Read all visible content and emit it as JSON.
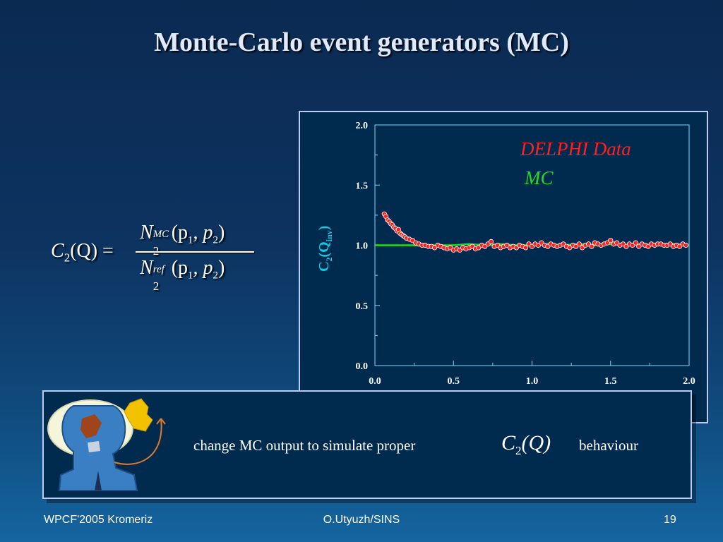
{
  "slide": {
    "title": "Monte-Carlo event generators (MC)",
    "caption_text": "change MC output to simulate proper",
    "caption_after": "behaviour",
    "caption_formula": {
      "symbol": "C",
      "sub": "2",
      "arg": "(Q)"
    }
  },
  "formula": {
    "lhs_symbol": "C",
    "lhs_sub": "2",
    "lhs_arg": "(Q) =",
    "num_symbol": "N",
    "num_sub": "2",
    "num_sup": "MC",
    "num_args": "(p",
    "num_p1_sub": "1",
    "num_mid": ", p",
    "num_p2_sub": "2",
    "num_close": ")",
    "den_symbol": "N",
    "den_sub": "2",
    "den_sup": "ref",
    "den_args": "(p",
    "den_p1_sub": "1",
    "den_mid": ", p",
    "den_p2_sub": "2",
    "den_close": ")"
  },
  "footer": {
    "left": "WPCF'2005 Kromeriz",
    "center": "O.Utyuzh/SINS",
    "right": "19"
  },
  "colors": {
    "data": "#ff2020",
    "mc": "#22dd22",
    "axis": "#7fd8ff",
    "tick_labels": "#ffffff"
  },
  "chart_data": {
    "type": "scatter",
    "xlim": [
      0.0,
      2.0
    ],
    "ylim": [
      0.0,
      2.0
    ],
    "x_ticks": [
      "0.0",
      "0.5",
      "1.0",
      "1.5",
      "2.0"
    ],
    "y_ticks": [
      "0.0",
      "0.5",
      "1.0",
      "1.5",
      "2.0"
    ],
    "ylabel": "C",
    "ylabel_sub": "2",
    "ylabel_paren": "(Q",
    "ylabel_inv": "inv",
    "ylabel_close": ")",
    "legend": [
      {
        "name": "DELPHI Data",
        "color": "#ff2020"
      },
      {
        "name": "MC",
        "color": "#22dd22"
      }
    ],
    "series": [
      {
        "name": "DELPHI Data",
        "x": [
          0.06,
          0.07,
          0.08,
          0.09,
          0.1,
          0.11,
          0.12,
          0.13,
          0.14,
          0.15,
          0.16,
          0.17,
          0.18,
          0.19,
          0.2,
          0.22,
          0.24,
          0.26,
          0.28,
          0.3,
          0.32,
          0.34,
          0.36,
          0.38,
          0.4,
          0.42,
          0.44,
          0.46,
          0.48,
          0.5,
          0.52,
          0.54,
          0.56,
          0.58,
          0.6,
          0.62,
          0.64,
          0.66,
          0.68,
          0.7,
          0.72,
          0.74,
          0.76,
          0.78,
          0.8,
          0.82,
          0.84,
          0.86,
          0.88,
          0.9,
          0.92,
          0.94,
          0.96,
          0.98,
          1.0,
          1.02,
          1.04,
          1.06,
          1.08,
          1.1,
          1.12,
          1.14,
          1.16,
          1.18,
          1.2,
          1.22,
          1.24,
          1.26,
          1.28,
          1.3,
          1.32,
          1.34,
          1.36,
          1.38,
          1.4,
          1.42,
          1.44,
          1.46,
          1.48,
          1.5,
          1.52,
          1.54,
          1.56,
          1.58,
          1.6,
          1.62,
          1.64,
          1.66,
          1.68,
          1.7,
          1.72,
          1.74,
          1.76,
          1.78,
          1.8,
          1.82,
          1.84,
          1.86,
          1.88,
          1.9,
          1.92,
          1.94,
          1.96,
          1.98
        ],
        "y": [
          1.26,
          1.24,
          1.21,
          1.2,
          1.18,
          1.17,
          1.15,
          1.14,
          1.12,
          1.13,
          1.1,
          1.09,
          1.08,
          1.07,
          1.06,
          1.05,
          1.04,
          1.02,
          1.01,
          1.0,
          1.0,
          0.99,
          0.99,
          0.98,
          1.0,
          0.99,
          0.98,
          0.97,
          0.98,
          0.96,
          0.97,
          0.96,
          0.98,
          0.97,
          0.98,
          0.99,
          0.97,
          0.98,
          1.0,
          0.99,
          1.01,
          1.03,
          0.99,
          1.0,
          0.98,
          0.99,
          1.0,
          0.98,
          0.99,
          0.98,
          1.0,
          0.99,
          0.98,
          1.01,
          0.99,
          1.01,
          1.0,
          1.02,
          1.0,
          0.99,
          1.01,
          1.0,
          0.99,
          1.0,
          1.01,
          0.99,
          0.98,
          1.0,
          0.99,
          1.01,
          0.98,
          1.0,
          1.01,
          0.99,
          1.02,
          1.01,
          1.0,
          1.01,
          1.02,
          1.04,
          1.01,
          1.02,
          1.0,
          1.01,
          0.99,
          1.01,
          1.0,
          1.02,
          0.99,
          1.01,
          1.0,
          0.99,
          1.01,
          1.0,
          1.01,
          1.01,
          1.0,
          1.0,
          1.01,
          0.99,
          1.0,
          0.99,
          1.01,
          1.0
        ]
      },
      {
        "name": "MC",
        "x": [
          0.0,
          0.1,
          0.2,
          0.3,
          0.4,
          0.5,
          0.6,
          0.7,
          0.8,
          0.9,
          1.0,
          1.1,
          1.2,
          1.3,
          1.4,
          1.5,
          1.6,
          1.7,
          1.8,
          1.9,
          2.0
        ],
        "y": [
          1.0,
          1.0,
          1.0,
          1.0,
          1.0,
          1.0,
          1.01,
          1.0,
          1.01,
          1.0,
          1.0,
          1.01,
          1.0,
          1.01,
          1.0,
          1.01,
          1.0,
          1.01,
          1.0,
          1.01,
          1.0
        ]
      }
    ]
  }
}
